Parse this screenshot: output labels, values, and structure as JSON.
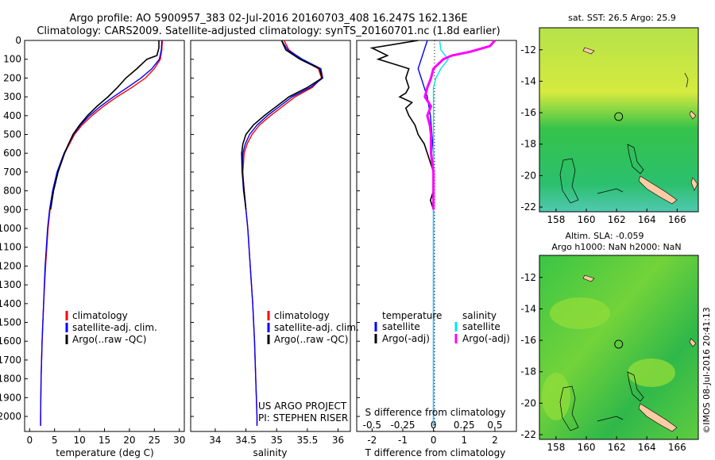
{
  "header": {
    "line1": "Argo profile: AO 5900957_383 02-Jul-2016 20160703_408 16.247S 162.136E",
    "line2": "Climatology: CARS2009. Satellite-adjusted climatology: synTS_20160701.nc (1.8d earlier)"
  },
  "side_label": "©IMOS 08-Jul-2016 20:41:13",
  "colors": {
    "climatology": "#ff0000",
    "satellite": "#0000ff",
    "argo": "#000000",
    "sal_sat": "#00e5ee",
    "sal_argo": "#ff00ff"
  },
  "depth_axis": {
    "ticks": [
      0,
      100,
      200,
      300,
      400,
      500,
      600,
      700,
      800,
      900,
      1000,
      1100,
      1200,
      1300,
      1400,
      1500,
      1600,
      1700,
      1800,
      1900,
      2000
    ],
    "ylim": [
      0,
      2080
    ]
  },
  "temp_legend": [
    "climatology",
    "satellite-adj. clim.",
    "Argo(..raw -QC)"
  ],
  "sal_legend": [
    "climatology",
    "satellite-adj. clim.",
    "Argo(..raw -QC)"
  ],
  "diff_legend": {
    "temperature": "temperature",
    "salinity": "salinity",
    "satellite": "satellite",
    "argo": "Argo(-adj)"
  },
  "project_text": [
    "US ARGO PROJECT",
    "PI: STEPHEN RISER"
  ],
  "maps": {
    "sst_title": "sat. SST: 26.5 Argo: 25.9",
    "sla_title1": "Altim. SLA: -0.059",
    "sla_title2": "Argo h1000: NaN h2000: NaN",
    "xticks": [
      158,
      160,
      162,
      164,
      166
    ],
    "yticks": [
      -12,
      -14,
      -16,
      -18,
      -20,
      -22
    ],
    "xlim": [
      156.9,
      167.4
    ],
    "ylim": [
      -22.3,
      -10.6
    ],
    "argo_position": {
      "lon": 162.136,
      "lat": -16.247
    }
  },
  "chart_data": [
    {
      "type": "line",
      "xlabel": "temperature (deg C)",
      "xlim": [
        -1,
        31
      ],
      "xticks": [
        0,
        5,
        10,
        15,
        20,
        25,
        30
      ],
      "ylim": [
        0,
        2080
      ],
      "series": [
        {
          "name": "climatology",
          "depth": [
            0,
            50,
            100,
            150,
            200,
            250,
            300,
            350,
            400,
            450,
            500,
            600,
            700,
            800,
            900,
            1000,
            1200,
            1400,
            1600,
            1800,
            2000,
            2050
          ],
          "values": [
            26.6,
            26.5,
            26.2,
            25.0,
            23.2,
            20.5,
            17.5,
            14.8,
            12.5,
            10.5,
            9.0,
            7.0,
            5.6,
            4.7,
            4.1,
            3.7,
            3.2,
            2.8,
            2.5,
            2.3,
            2.2,
            2.2
          ]
        },
        {
          "name": "satellite-adj. clim.",
          "depth": [
            0,
            50,
            100,
            150,
            200,
            250,
            300,
            350,
            400,
            450,
            500,
            600,
            700,
            800,
            900,
            1000,
            1200,
            1400,
            1600,
            1800,
            2000,
            2050
          ],
          "values": [
            26.5,
            26.4,
            26.0,
            24.5,
            22.3,
            19.6,
            16.8,
            14.2,
            12.0,
            10.2,
            8.8,
            6.9,
            5.5,
            4.6,
            4.0,
            3.6,
            3.1,
            2.8,
            2.5,
            2.3,
            2.2,
            2.2
          ]
        },
        {
          "name": "Argo(..raw -QC)",
          "depth": [
            0,
            40,
            80,
            100,
            150,
            200,
            250,
            300,
            350,
            400,
            450,
            500,
            550,
            600,
            700,
            800,
            900
          ],
          "values": [
            25.9,
            25.9,
            25.5,
            23.5,
            21.5,
            19.3,
            17.6,
            15.7,
            13.5,
            11.6,
            10.0,
            8.7,
            7.8,
            7.0,
            5.7,
            4.8,
            4.2
          ]
        }
      ]
    },
    {
      "type": "line",
      "xlabel": "salinity",
      "xlim": [
        33.6,
        36.2
      ],
      "xticks": [
        34,
        34.5,
        35,
        35.5,
        36
      ],
      "ylim": [
        0,
        2080
      ],
      "series": [
        {
          "name": "climatology",
          "depth": [
            0,
            50,
            100,
            150,
            200,
            250,
            300,
            350,
            400,
            450,
            500,
            550,
            600,
            700,
            800,
            900,
            1000,
            1200,
            1400,
            1600,
            1800,
            2000,
            2050
          ],
          "values": [
            35.12,
            35.2,
            35.4,
            35.68,
            35.73,
            35.58,
            35.3,
            35.1,
            34.9,
            34.72,
            34.6,
            34.52,
            34.47,
            34.45,
            34.47,
            34.5,
            34.53,
            34.57,
            34.61,
            34.64,
            34.66,
            34.68,
            34.68
          ]
        },
        {
          "name": "satellite-adj. clim.",
          "depth": [
            0,
            50,
            100,
            150,
            200,
            250,
            300,
            350,
            400,
            450,
            500,
            550,
            600,
            700,
            800,
            900,
            1000,
            1200,
            1400,
            1600,
            1800,
            2000,
            2050
          ],
          "values": [
            35.08,
            35.18,
            35.42,
            35.72,
            35.75,
            35.55,
            35.25,
            35.05,
            34.85,
            34.68,
            34.56,
            34.49,
            34.45,
            34.44,
            34.46,
            34.5,
            34.53,
            34.57,
            34.61,
            34.64,
            34.66,
            34.68,
            34.68
          ]
        },
        {
          "name": "Argo(..raw -QC)",
          "depth": [
            0,
            50,
            100,
            150,
            200,
            250,
            300,
            350,
            400,
            450,
            500,
            550,
            600,
            700,
            800,
            900
          ],
          "values": [
            35.08,
            35.15,
            35.38,
            35.7,
            35.74,
            35.5,
            35.2,
            35.0,
            34.8,
            34.62,
            34.5,
            34.45,
            34.43,
            34.44,
            34.47,
            34.5
          ]
        }
      ]
    },
    {
      "type": "line",
      "xlabel": "T difference from climatology",
      "xlabel_top": "S difference from climatology",
      "xlim": [
        -2.5,
        2.7
      ],
      "xticks": [
        -2,
        -1,
        0,
        1,
        2
      ],
      "xticks_top": [
        -0.5,
        -0.25,
        0,
        0.25,
        0.5
      ],
      "xticks_top_labels": [
        "-0.5",
        "-0.25",
        "0",
        "0.25",
        "0.5"
      ],
      "ylim": [
        0,
        2080
      ],
      "series": [
        {
          "name": "temperature satellite",
          "depth": [
            0,
            50,
            100,
            150,
            200,
            250,
            300,
            400,
            500,
            600,
            700,
            800,
            1000,
            1500,
            2050
          ],
          "values": [
            -0.2,
            -0.3,
            -0.4,
            -0.5,
            -0.4,
            -0.3,
            -0.2,
            -0.1,
            -0.05,
            0,
            0,
            0,
            0,
            0,
            0
          ]
        },
        {
          "name": "temperature Argo(-adj)",
          "depth": [
            0,
            40,
            80,
            100,
            150,
            200,
            250,
            280,
            300,
            330,
            360,
            400,
            450,
            500,
            550,
            600,
            650,
            700,
            750,
            800,
            850,
            900
          ],
          "values": [
            -0.5,
            -2.0,
            -1.5,
            -1.8,
            -0.8,
            -0.9,
            -0.8,
            -0.9,
            -1.1,
            -0.7,
            -0.9,
            -0.8,
            -0.6,
            -0.5,
            -0.3,
            -0.2,
            -0.1,
            0,
            0,
            0,
            -0.1,
            0
          ]
        },
        {
          "name": "salinity satellite",
          "depth": [
            0,
            50,
            100,
            150,
            200,
            250,
            300,
            400,
            500,
            600,
            800,
            1000,
            1500,
            2050
          ],
          "values": [
            0.05,
            0.06,
            0.12,
            0.06,
            0.02,
            0.0,
            0.0,
            0.0,
            0.0,
            0.0,
            0.0,
            0.0,
            0.0,
            0.0
          ]
        },
        {
          "name": "salinity Argo(-adj)",
          "depth": [
            0,
            30,
            60,
            80,
            100,
            150,
            200,
            250,
            300,
            350,
            400,
            450,
            500,
            600,
            700,
            800,
            900
          ],
          "values": [
            0.5,
            0.46,
            0.3,
            0.15,
            0.08,
            0.0,
            -0.02,
            -0.05,
            -0.07,
            -0.02,
            -0.05,
            -0.03,
            -0.02,
            -0.02,
            0.0,
            0.0,
            0.0
          ]
        }
      ]
    }
  ]
}
